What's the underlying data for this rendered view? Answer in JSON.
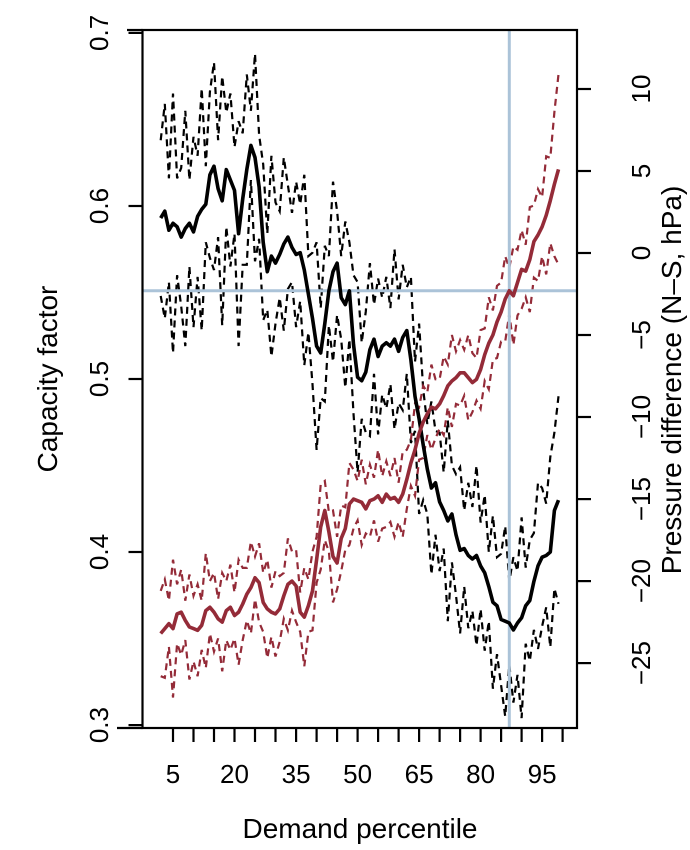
{
  "chart_data": {
    "type": "line",
    "title": "",
    "xlabel": "Demand percentile",
    "ylabel_left": "Capacity factor",
    "ylabel_right": "Pressure difference (N–S, hPa)",
    "x_tick_labels": [
      "5",
      "20",
      "35",
      "50",
      "65",
      "80",
      "95"
    ],
    "x_tick_values": [
      5,
      20,
      35,
      50,
      65,
      80,
      95
    ],
    "x_minor_ticks": {
      "start": 5,
      "end": 100,
      "step": 5
    },
    "xlim": [
      -2.44,
      103.5
    ],
    "grid": "off",
    "legend": "none",
    "left_axis": {
      "tick_labels": [
        "0.7",
        "0.6",
        "0.5",
        "0.4",
        "0.3"
      ],
      "tick_values": [
        0.7,
        0.6,
        0.5,
        0.4,
        0.3
      ],
      "lim": [
        0.2983,
        0.7017
      ],
      "color": "#000000"
    },
    "right_axis": {
      "tick_labels": [
        "10",
        "5",
        "0",
        "−5",
        "−10",
        "−15",
        "−20",
        "−25"
      ],
      "tick_values": [
        10,
        5,
        0,
        -5,
        -10,
        -15,
        -20,
        -25
      ],
      "lim": [
        -28.96,
        13.6
      ],
      "color": "#942b38"
    },
    "crosshair": {
      "x_percentile": 87,
      "y_capacity_factor": 0.551,
      "y_pressure_hpa": -2.3,
      "color": "#abc3d8"
    },
    "x_start": 2,
    "x_step": 1,
    "series": [
      {
        "name": "capacity_factor_mean",
        "axis": "left",
        "style": "solid",
        "color": "#000000",
        "values": [
          0.593,
          0.597,
          0.586,
          0.59,
          0.588,
          0.582,
          0.587,
          0.59,
          0.585,
          0.594,
          0.598,
          0.601,
          0.618,
          0.623,
          0.61,
          0.603,
          0.621,
          0.615,
          0.609,
          0.584,
          0.604,
          0.621,
          0.635,
          0.628,
          0.611,
          0.579,
          0.562,
          0.571,
          0.567,
          0.572,
          0.578,
          0.582,
          0.576,
          0.572,
          0.573,
          0.563,
          0.549,
          0.535,
          0.519,
          0.515,
          0.532,
          0.551,
          0.562,
          0.567,
          0.547,
          0.543,
          0.551,
          0.52,
          0.501,
          0.499,
          0.504,
          0.517,
          0.523,
          0.513,
          0.519,
          0.521,
          0.519,
          0.523,
          0.516,
          0.524,
          0.528,
          0.511,
          0.49,
          0.477,
          0.462,
          0.448,
          0.437,
          0.44,
          0.429,
          0.424,
          0.418,
          0.422,
          0.41,
          0.401,
          0.402,
          0.398,
          0.396,
          0.398,
          0.392,
          0.388,
          0.38,
          0.371,
          0.369,
          0.361,
          0.36,
          0.359,
          0.355,
          0.359,
          0.362,
          0.369,
          0.372,
          0.383,
          0.392,
          0.397,
          0.398,
          0.4,
          0.424,
          0.43
        ]
      },
      {
        "name": "capacity_factor_band_halfwidth",
        "axis": "left",
        "style": "dashed",
        "color": "#000000",
        "values": [
          0.045,
          0.062,
          0.03,
          0.075,
          0.028,
          0.04,
          0.068,
          0.025,
          0.055,
          0.035,
          0.07,
          0.022,
          0.048,
          0.06,
          0.028,
          0.072,
          0.033,
          0.05,
          0.025,
          0.065,
          0.038,
          0.055,
          0.02,
          0.06,
          0.03,
          0.045,
          0.022,
          0.058,
          0.035,
          0.025,
          0.05,
          0.03,
          0.02,
          0.042,
          0.028,
          0.055,
          0.022,
          0.038,
          0.06,
          0.026,
          0.045,
          0.02,
          0.052,
          0.03,
          0.024,
          0.048,
          0.028,
          0.04,
          0.055,
          0.022,
          0.035,
          0.05,
          0.02,
          0.045,
          0.028,
          0.038,
          0.022,
          0.052,
          0.03,
          0.042,
          0.025,
          0.048,
          0.02,
          0.055,
          0.032,
          0.026,
          0.05,
          0.03,
          0.04,
          0.022,
          0.058,
          0.028,
          0.035,
          0.048,
          0.022,
          0.042,
          0.03,
          0.052,
          0.025,
          0.045,
          0.02,
          0.05,
          0.028,
          0.038,
          0.055,
          0.024,
          0.042,
          0.03,
          0.058,
          0.022,
          0.035,
          0.028,
          0.048,
          0.04,
          0.03,
          0.055,
          0.045,
          0.06
        ]
      },
      {
        "name": "pressure_difference_mean",
        "axis": "right",
        "style": "solid",
        "color": "#942b38",
        "values": [
          -23.2,
          -22.9,
          -22.6,
          -22.9,
          -22.0,
          -21.9,
          -22.4,
          -22.8,
          -22.9,
          -23.0,
          -22.7,
          -21.8,
          -21.6,
          -21.9,
          -22.3,
          -22.5,
          -21.8,
          -21.6,
          -22.1,
          -21.9,
          -21.4,
          -20.8,
          -20.4,
          -19.8,
          -20.1,
          -21.3,
          -21.7,
          -21.9,
          -22.0,
          -21.7,
          -20.9,
          -20.2,
          -20.0,
          -20.3,
          -21.9,
          -22.2,
          -21.5,
          -20.6,
          -18.7,
          -16.7,
          -15.7,
          -17.0,
          -18.5,
          -18.9,
          -17.4,
          -16.8,
          -15.3,
          -15.0,
          -15.1,
          -15.2,
          -15.6,
          -15.1,
          -15.0,
          -14.8,
          -15.2,
          -14.7,
          -15.0,
          -14.9,
          -15.2,
          -14.7,
          -13.8,
          -12.8,
          -12.0,
          -11.0,
          -10.3,
          -9.8,
          -9.4,
          -9.5,
          -9.2,
          -8.7,
          -8.1,
          -7.8,
          -7.6,
          -7.3,
          -7.3,
          -7.6,
          -7.9,
          -7.7,
          -7.1,
          -6.2,
          -5.5,
          -5.0,
          -4.2,
          -3.6,
          -2.8,
          -2.3,
          -2.6,
          -1.8,
          -1.0,
          -1.1,
          -0.4,
          0.7,
          1.1,
          1.6,
          2.3,
          3.2,
          4.2,
          5.1
        ]
      },
      {
        "name": "pressure_difference_band_halfwidth",
        "axis": "right",
        "style": "dashed",
        "color": "#942b38",
        "values": [
          2.6,
          3.0,
          1.4,
          4.2,
          1.8,
          2.6,
          1.2,
          3.2,
          2.0,
          2.8,
          1.5,
          3.5,
          1.6,
          2.4,
          1.2,
          3.0,
          1.8,
          2.6,
          1.4,
          3.2,
          2.2,
          1.6,
          2.8,
          1.3,
          2.4,
          1.8,
          3.0,
          1.5,
          2.6,
          2.0,
          1.4,
          2.8,
          1.8,
          2.2,
          1.2,
          3.0,
          1.6,
          2.4,
          1.4,
          2.6,
          1.8,
          1.2,
          2.8,
          1.6,
          2.0,
          1.3,
          2.5,
          1.8,
          1.2,
          2.6,
          1.5,
          2.2,
          1.3,
          2.8,
          1.6,
          2.0,
          1.4,
          2.4,
          1.2,
          2.6,
          1.8,
          1.4,
          2.8,
          1.6,
          2.2,
          1.3,
          2.6,
          1.8,
          1.5,
          2.4,
          1.3,
          2.8,
          1.6,
          2.0,
          1.4,
          2.6,
          1.8,
          1.3,
          2.4,
          1.6,
          2.8,
          1.5,
          2.2,
          1.8,
          2.6,
          1.4,
          3.0,
          2.0,
          2.4,
          1.6,
          3.2,
          2.2,
          2.8,
          1.8,
          3.6,
          2.6,
          4.4,
          5.8
        ]
      }
    ]
  }
}
